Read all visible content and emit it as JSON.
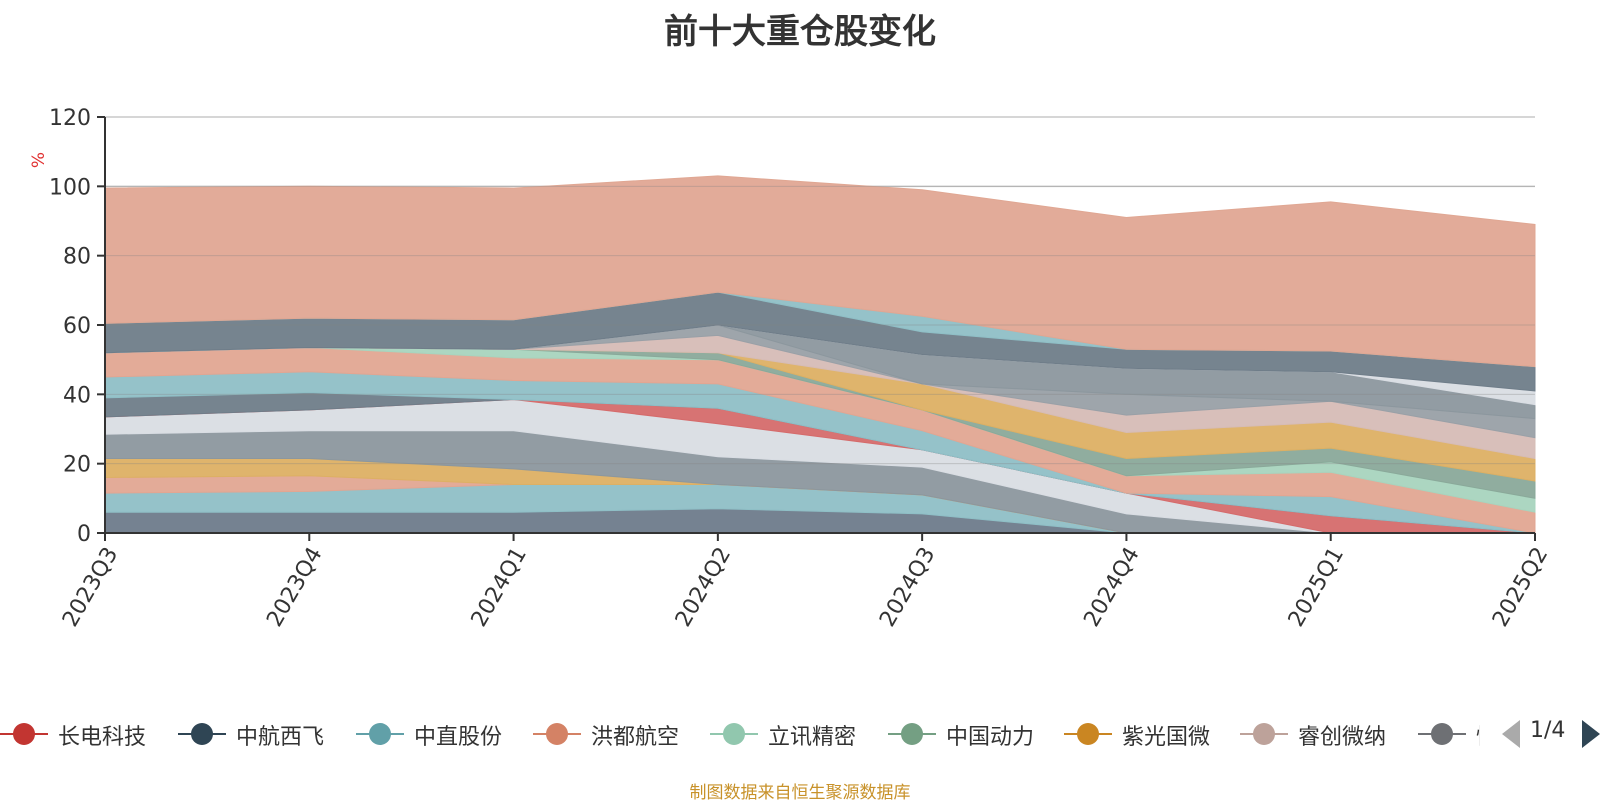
{
  "chart_data": {
    "type": "area",
    "stacked": true,
    "title": "前十大重仓股变化",
    "ylabel": "%",
    "ylim": [
      0,
      120
    ],
    "yticks": [
      0,
      20,
      40,
      60,
      80,
      100,
      120
    ],
    "categories": [
      "2023Q3",
      "2023Q4",
      "2024Q1",
      "2024Q2",
      "2024Q3",
      "2024Q4",
      "2025Q1",
      "2025Q2"
    ],
    "grid": true,
    "legend_position": "bottom",
    "series": [
      {
        "name": "",
        "color": "#6e7b8b",
        "values": [
          6.0,
          6.0,
          6.0,
          7.0,
          5.5,
          0,
          0,
          0
        ]
      },
      {
        "name": "",
        "color": "#8fbfc6",
        "values": [
          5.5,
          6.0,
          8.0,
          7.0,
          5.5,
          0,
          0,
          0
        ]
      },
      {
        "name": "",
        "color": "#e2a692",
        "values": [
          4.5,
          4.5,
          0,
          0,
          0,
          0,
          0,
          0
        ]
      },
      {
        "name": "",
        "color": "#ddb064",
        "values": [
          5.5,
          5.0,
          4.5,
          0,
          0,
          0,
          0,
          0
        ]
      },
      {
        "name": "",
        "color": "#8c979e",
        "values": [
          7.0,
          8.0,
          11.0,
          8.0,
          8.0,
          5.5,
          0,
          0
        ]
      },
      {
        "name": "",
        "color": "#d9dde3",
        "values": [
          5.0,
          6.0,
          9.0,
          9.5,
          5.0,
          6.0,
          0,
          0
        ]
      },
      {
        "name": "长电科技",
        "color": "#d56b6b",
        "values": [
          0,
          0,
          0,
          4.5,
          0,
          0,
          5.0,
          0
        ]
      },
      {
        "name": "中航西飞",
        "color": "#6f7d89",
        "values": [
          5.5,
          5.0,
          0,
          0,
          0,
          0,
          0,
          0
        ]
      },
      {
        "name": "中直股份",
        "color": "#8fbfc6",
        "values": [
          6.0,
          6.0,
          5.5,
          7.0,
          5.5,
          0,
          5.5,
          0
        ]
      },
      {
        "name": "洪都航空",
        "color": "#e2a692",
        "values": [
          7.0,
          7.0,
          6.5,
          7.0,
          6.0,
          5.0,
          7.0,
          6.0
        ]
      },
      {
        "name": "立讯精密",
        "color": "#a8d4be",
        "values": [
          0,
          0,
          2.5,
          0,
          0,
          0,
          3.0,
          4.0
        ]
      },
      {
        "name": "中国动力",
        "color": "#8aa99a",
        "values": [
          0,
          0,
          0,
          2.0,
          0,
          5.0,
          4.0,
          5.0
        ]
      },
      {
        "name": "紫光国微",
        "color": "#ddb064",
        "values": [
          0,
          0,
          0,
          0,
          7.5,
          7.5,
          7.5,
          6.5
        ]
      },
      {
        "name": "睿创微纳",
        "color": "#d6bcb6",
        "values": [
          0,
          0,
          0,
          5.0,
          0,
          5.0,
          6.0,
          6.0
        ]
      },
      {
        "name": "",
        "color": "#99a0a7",
        "values": [
          0,
          0,
          0,
          3.0,
          0,
          6.0,
          0,
          5.5
        ]
      },
      {
        "name": "",
        "color": "#8c979e",
        "values": [
          0,
          0,
          0,
          0,
          8.5,
          7.5,
          8.5,
          4.0
        ]
      },
      {
        "name": "",
        "color": "#d9dde3",
        "values": [
          0,
          0,
          0,
          0,
          0,
          0,
          0,
          4.0
        ]
      },
      {
        "name": "",
        "color": "#6f7d89",
        "values": [
          8.5,
          8.5,
          8.5,
          9.5,
          6.5,
          5.5,
          6.0,
          7.0
        ]
      },
      {
        "name": "",
        "color": "#8fbfc6",
        "values": [
          0,
          0,
          0,
          0,
          4.5,
          0,
          0,
          0
        ]
      },
      {
        "name": "",
        "color": "#e0a793",
        "values": [
          39.0,
          38.0,
          38.0,
          33.5,
          36.5,
          38.0,
          43.0,
          41.0
        ]
      }
    ]
  },
  "legend": {
    "items": [
      {
        "name": "长电科技",
        "color": "#c23531"
      },
      {
        "name": "中航西飞",
        "color": "#2f4554"
      },
      {
        "name": "中直股份",
        "color": "#61a0a8"
      },
      {
        "name": "洪都航空",
        "color": "#d48265"
      },
      {
        "name": "立讯精密",
        "color": "#91c7ae"
      },
      {
        "name": "中国动力",
        "color": "#749f83"
      },
      {
        "name": "紫光国微",
        "color": "#ca8622"
      },
      {
        "name": "睿创微纳",
        "color": "#bda29a"
      },
      {
        "name": "恒",
        "color": "#6e7074"
      }
    ],
    "page": "1/4"
  },
  "source_note": "制图数据来自恒生聚源数据库"
}
